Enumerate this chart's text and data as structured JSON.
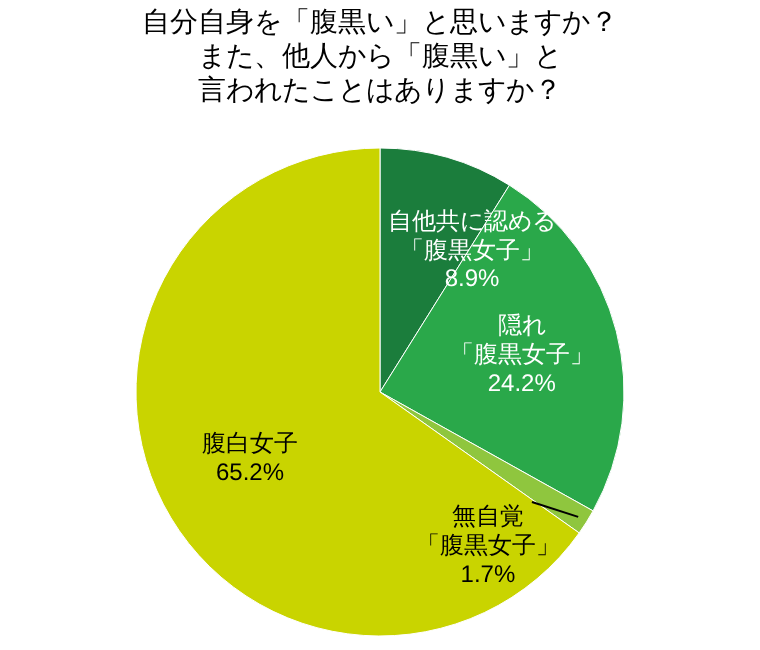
{
  "chart_data": {
    "type": "pie",
    "title": "自分自身を「腹黒い」と思いますか？",
    "subtitle": "また、他人から「腹黒い」と言われたことはありますか？",
    "categories": [
      "自他共に認める「腹黒女子」",
      "隠れ「腹黒女子」",
      "無自覚「腹黒女子」",
      "腹白女子"
    ],
    "values": [
      8.9,
      24.2,
      1.7,
      65.2
    ],
    "value_labels": [
      "8.9%",
      "24.2%",
      "1.7%",
      "65.2%"
    ],
    "colors": [
      "#1b7d3c",
      "#2aa84a",
      "#8fc63e",
      "#c9d400"
    ]
  }
}
